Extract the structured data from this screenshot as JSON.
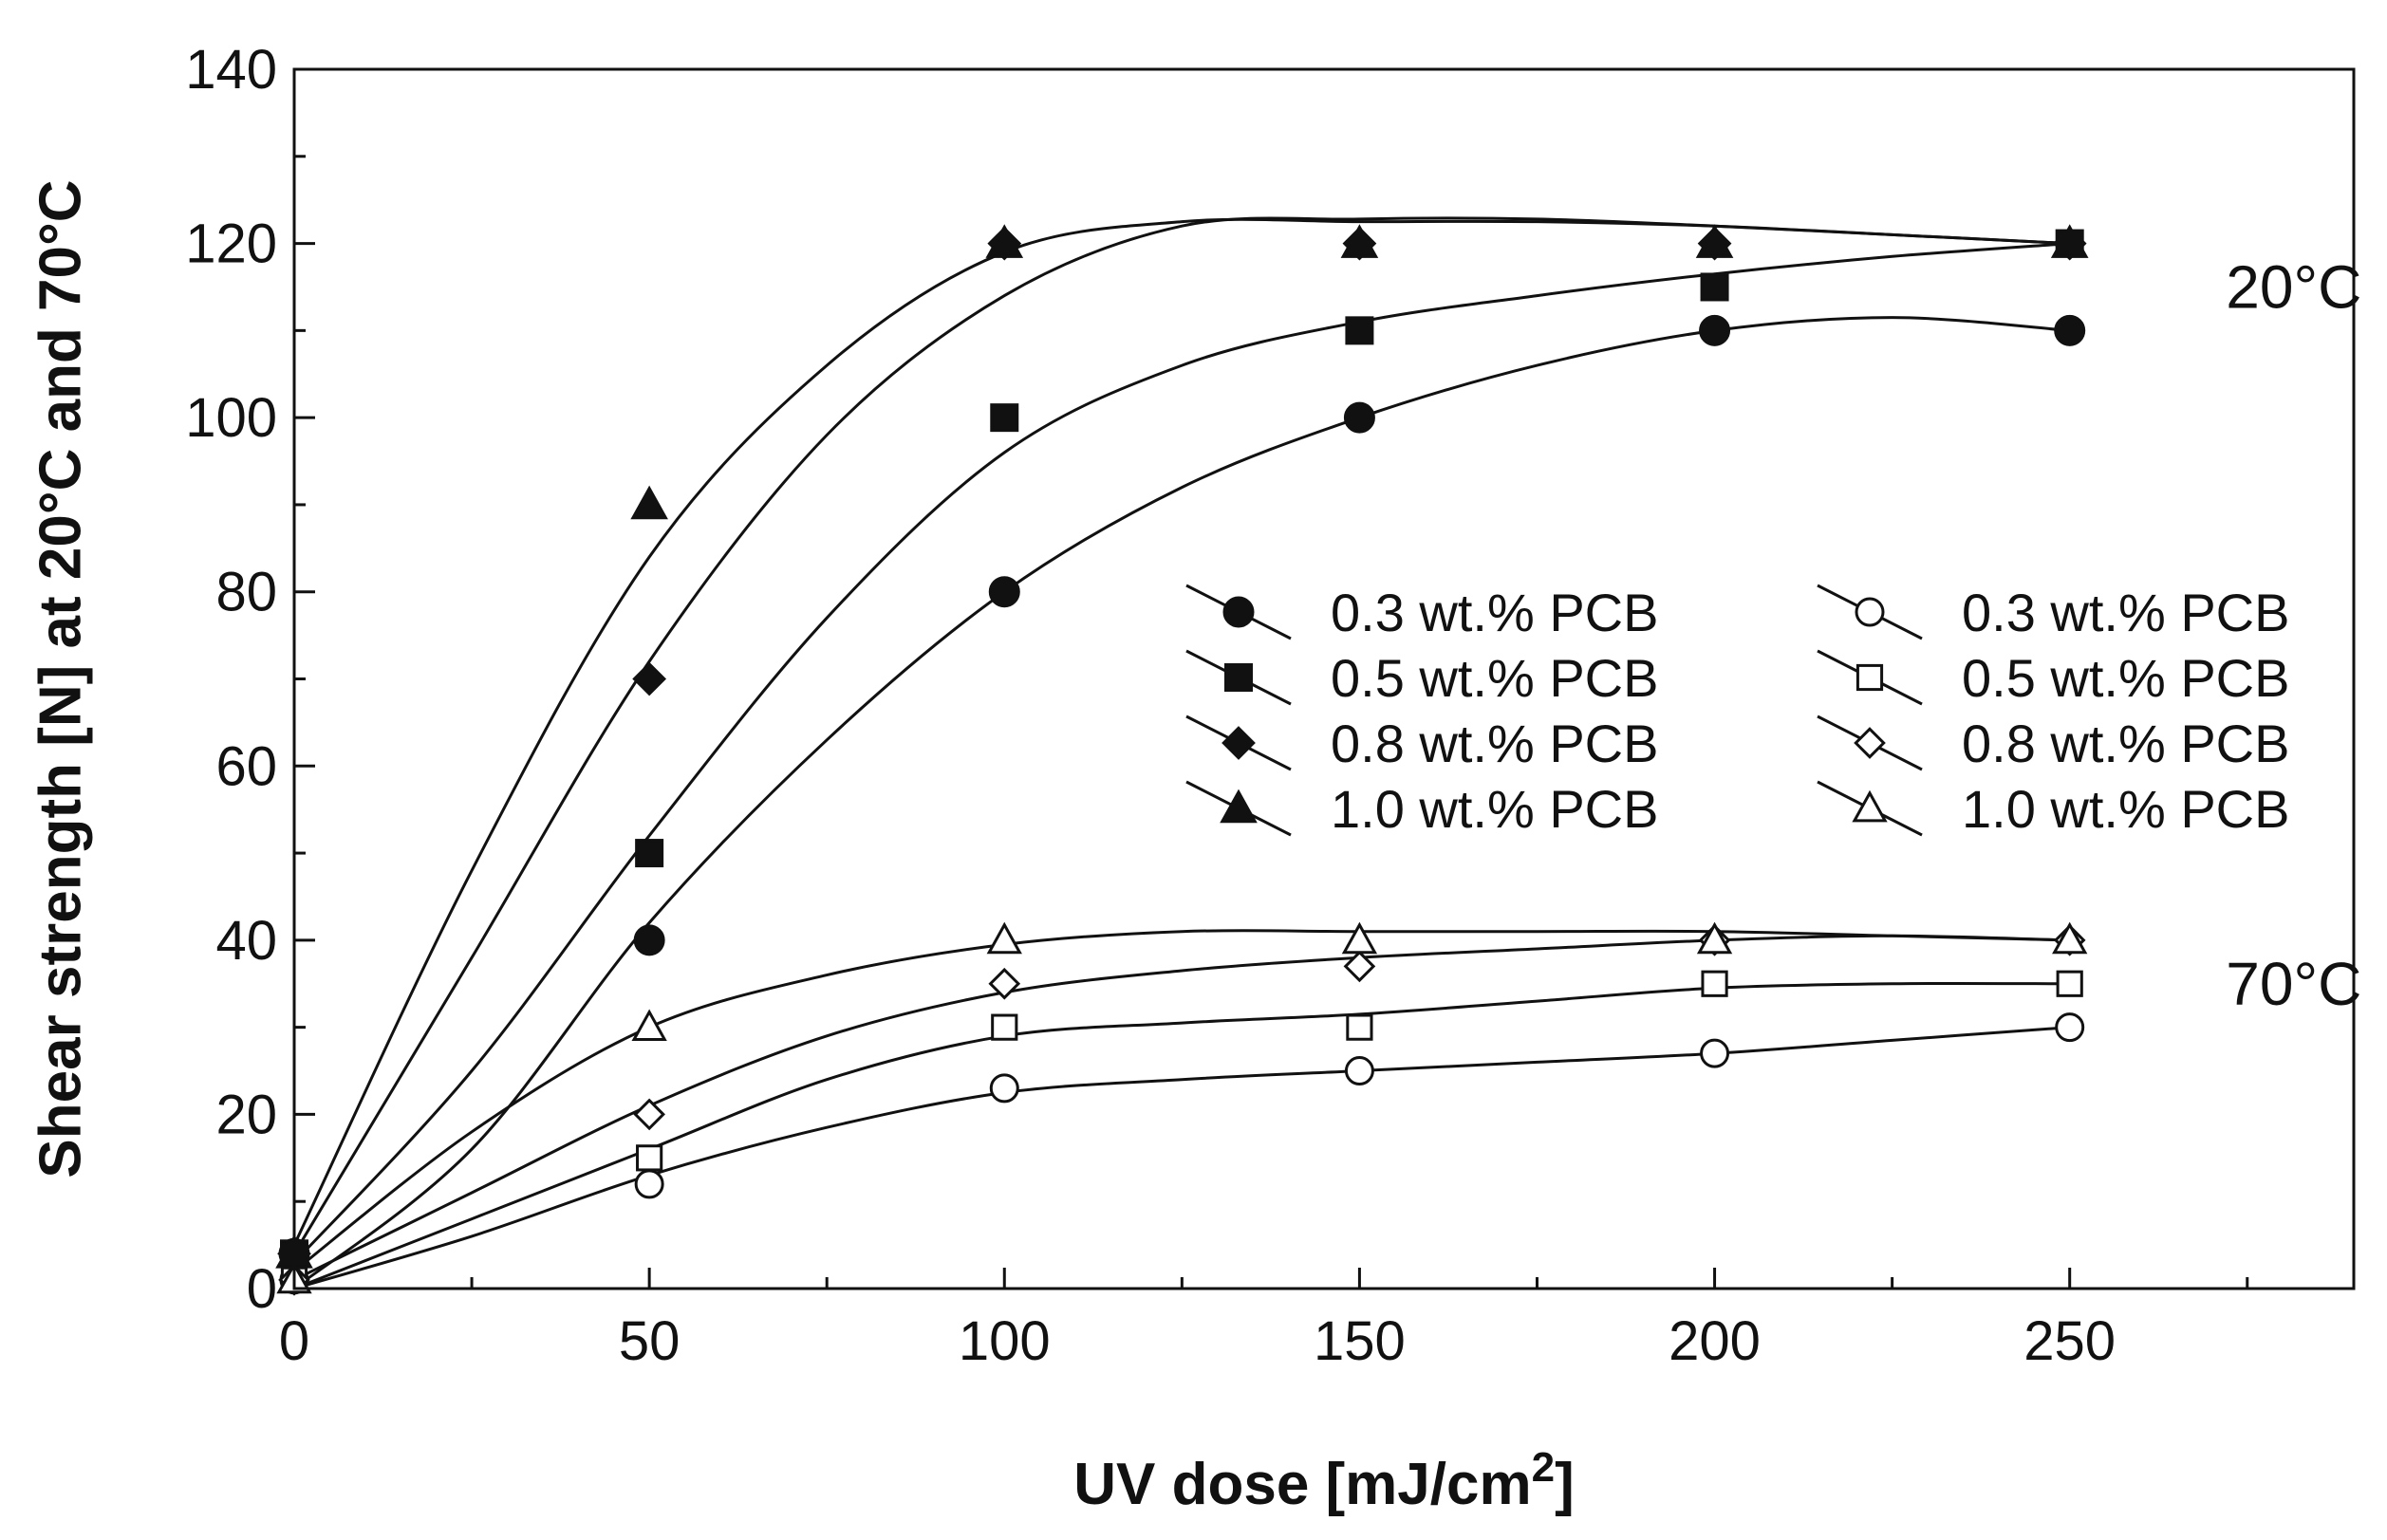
{
  "chart_data": {
    "type": "line",
    "title": "",
    "xlabel": "UV dose [mJ/cm",
    "xlabel_sup": "2",
    "xlabel_end": "]",
    "ylabel": "Shear strength [N] at 20°C and 70°C",
    "xlim": [
      0,
      290
    ],
    "ylim": [
      0,
      140
    ],
    "xticks": [
      0,
      50,
      100,
      150,
      200,
      250
    ],
    "yticks": [
      0,
      20,
      40,
      60,
      80,
      100,
      120,
      140
    ],
    "x": [
      0,
      50,
      100,
      150,
      200,
      250
    ],
    "annotations": [
      {
        "text": "20°C",
        "x": 272,
        "y": 115
      },
      {
        "text": "70°C",
        "x": 272,
        "y": 35
      }
    ],
    "series": [
      {
        "name": "0.3 wt.% PCB",
        "group": "20°C",
        "marker": "circle",
        "filled": true,
        "color": "#111111",
        "values": [
          4,
          40,
          80,
          100,
          110,
          110
        ],
        "curve": [
          [
            0,
            0
          ],
          [
            25,
            16
          ],
          [
            50,
            42
          ],
          [
            75,
            63
          ],
          [
            100,
            80
          ],
          [
            125,
            92
          ],
          [
            150,
            100
          ],
          [
            175,
            106
          ],
          [
            200,
            110
          ],
          [
            225,
            111.5
          ],
          [
            250,
            110
          ]
        ]
      },
      {
        "name": "0.5 wt.% PCB",
        "group": "20°C",
        "marker": "square",
        "filled": true,
        "color": "#111111",
        "values": [
          4,
          50,
          100,
          110,
          115,
          120
        ],
        "curve": [
          [
            0,
            3
          ],
          [
            25,
            25
          ],
          [
            50,
            52
          ],
          [
            75,
            77
          ],
          [
            100,
            96
          ],
          [
            125,
            106
          ],
          [
            150,
            111
          ],
          [
            175,
            114
          ],
          [
            200,
            116.5
          ],
          [
            225,
            118.5
          ],
          [
            250,
            120
          ]
        ]
      },
      {
        "name": "0.8 wt.% PCB",
        "group": "20°C",
        "marker": "diamond",
        "filled": true,
        "color": "#111111",
        "values": [
          4,
          70,
          120,
          120,
          120,
          120
        ],
        "curve": [
          [
            0,
            4
          ],
          [
            25,
            38
          ],
          [
            50,
            72
          ],
          [
            75,
            98
          ],
          [
            100,
            114
          ],
          [
            125,
            122
          ],
          [
            150,
            122.8
          ],
          [
            175,
            122.8
          ],
          [
            200,
            122
          ],
          [
            225,
            121
          ],
          [
            250,
            120
          ]
        ]
      },
      {
        "name": "1.0 wt.% PCB",
        "group": "20°C",
        "marker": "triangle",
        "filled": true,
        "color": "#111111",
        "values": [
          4,
          90,
          120,
          120,
          120,
          120
        ],
        "curve": [
          [
            0,
            5
          ],
          [
            25,
            48
          ],
          [
            50,
            84
          ],
          [
            75,
            106
          ],
          [
            100,
            119
          ],
          [
            125,
            122.5
          ],
          [
            150,
            122.5
          ],
          [
            175,
            122.5
          ],
          [
            200,
            122
          ],
          [
            225,
            121
          ],
          [
            250,
            120
          ]
        ]
      },
      {
        "name": "0.3 wt.% PCB",
        "group": "70°C",
        "marker": "circle",
        "filled": false,
        "color": "#111111",
        "values": [
          1,
          12,
          23,
          25,
          27,
          30
        ],
        "curve": [
          [
            0,
            0
          ],
          [
            25,
            6
          ],
          [
            50,
            13
          ],
          [
            75,
            18.5
          ],
          [
            100,
            22.5
          ],
          [
            125,
            24
          ],
          [
            150,
            25
          ],
          [
            175,
            26
          ],
          [
            200,
            27
          ],
          [
            225,
            28.5
          ],
          [
            250,
            30
          ]
        ]
      },
      {
        "name": "0.5 wt.% PCB",
        "group": "70°C",
        "marker": "square",
        "filled": false,
        "color": "#111111",
        "values": [
          1,
          15,
          30,
          30,
          35,
          35
        ],
        "curve": [
          [
            0,
            0
          ],
          [
            25,
            8
          ],
          [
            50,
            16
          ],
          [
            75,
            24
          ],
          [
            100,
            29
          ],
          [
            125,
            30.5
          ],
          [
            150,
            31.5
          ],
          [
            175,
            33
          ],
          [
            200,
            34.5
          ],
          [
            225,
            35
          ],
          [
            250,
            35
          ]
        ]
      },
      {
        "name": "0.8 wt.% PCB",
        "group": "70°C",
        "marker": "diamond",
        "filled": false,
        "color": "#111111",
        "values": [
          1,
          20,
          35,
          37,
          40,
          40
        ],
        "curve": [
          [
            0,
            1
          ],
          [
            25,
            11
          ],
          [
            50,
            21
          ],
          [
            75,
            29
          ],
          [
            100,
            34
          ],
          [
            125,
            36.5
          ],
          [
            150,
            38
          ],
          [
            175,
            39
          ],
          [
            200,
            40
          ],
          [
            225,
            40.5
          ],
          [
            250,
            40
          ]
        ]
      },
      {
        "name": "1.0 wt.% PCB",
        "group": "70°C",
        "marker": "triangle",
        "filled": false,
        "color": "#111111",
        "values": [
          1,
          30,
          40,
          40,
          40,
          40
        ],
        "curve": [
          [
            0,
            2
          ],
          [
            25,
            18
          ],
          [
            50,
            30
          ],
          [
            75,
            36
          ],
          [
            100,
            39.5
          ],
          [
            125,
            41
          ],
          [
            150,
            41
          ],
          [
            175,
            41
          ],
          [
            200,
            41
          ],
          [
            225,
            40.5
          ],
          [
            250,
            40
          ]
        ]
      }
    ]
  }
}
